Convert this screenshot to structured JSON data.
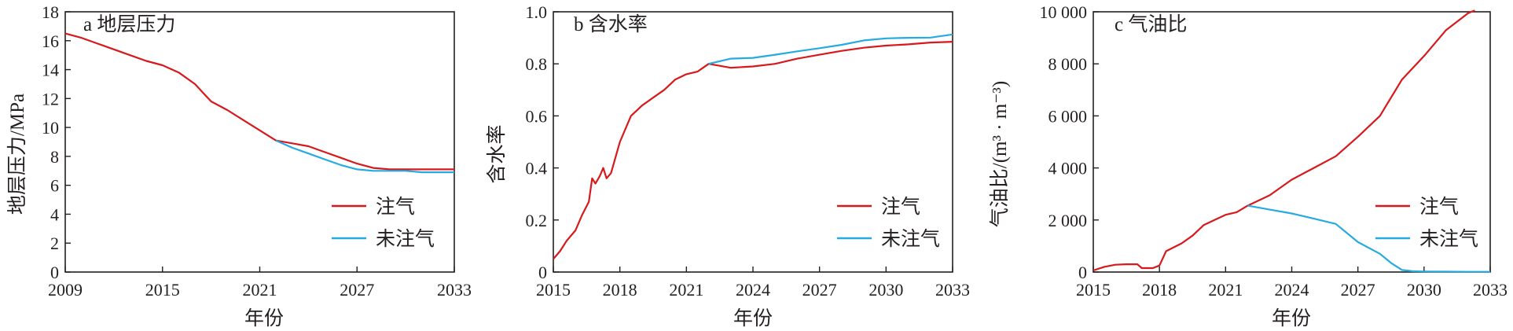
{
  "chart_data": [
    {
      "type": "line",
      "title": "a 地层压力",
      "xlabel": "年份",
      "ylabel": "地层压力/MPa",
      "xlim": [
        2009,
        2033
      ],
      "ylim": [
        0,
        18
      ],
      "x_ticks": [
        2009,
        2015,
        2021,
        2027,
        2033
      ],
      "y_ticks": [
        0,
        2,
        4,
        6,
        8,
        10,
        12,
        14,
        16,
        18
      ],
      "y_tick_labels": [
        "0",
        "2",
        "4",
        "6",
        "8",
        "10",
        "12",
        "14",
        "16",
        "18"
      ],
      "grid": false,
      "legend_position": "bottom-right",
      "series": [
        {
          "name": "注气",
          "color": "#d7191c",
          "points": [
            [
              2009,
              16.5
            ],
            [
              2010,
              16.2
            ],
            [
              2011,
              15.8
            ],
            [
              2012,
              15.4
            ],
            [
              2013,
              15.0
            ],
            [
              2014,
              14.6
            ],
            [
              2015,
              14.3
            ],
            [
              2016,
              13.8
            ],
            [
              2017,
              13.0
            ],
            [
              2018,
              11.8
            ],
            [
              2019,
              11.2
            ],
            [
              2020,
              10.5
            ],
            [
              2021,
              9.8
            ],
            [
              2022,
              9.1
            ],
            [
              2023,
              8.9
            ],
            [
              2024,
              8.7
            ],
            [
              2025,
              8.3
            ],
            [
              2026,
              7.9
            ],
            [
              2027,
              7.5
            ],
            [
              2028,
              7.2
            ],
            [
              2029,
              7.1
            ],
            [
              2030,
              7.1
            ],
            [
              2031,
              7.1
            ],
            [
              2032,
              7.1
            ],
            [
              2033,
              7.1
            ]
          ]
        },
        {
          "name": "未注气",
          "color": "#27aae1",
          "points": [
            [
              2022,
              9.1
            ],
            [
              2023,
              8.6
            ],
            [
              2024,
              8.2
            ],
            [
              2025,
              7.8
            ],
            [
              2026,
              7.4
            ],
            [
              2027,
              7.1
            ],
            [
              2028,
              7.0
            ],
            [
              2029,
              7.0
            ],
            [
              2030,
              7.0
            ],
            [
              2031,
              6.9
            ],
            [
              2032,
              6.9
            ],
            [
              2033,
              6.9
            ]
          ]
        }
      ]
    },
    {
      "type": "line",
      "title": "b 含水率",
      "xlabel": "年份",
      "ylabel": "含水率",
      "xlim": [
        2015,
        2033
      ],
      "ylim": [
        0,
        1.0
      ],
      "x_ticks": [
        2015,
        2018,
        2021,
        2024,
        2027,
        2030,
        2033
      ],
      "y_ticks": [
        0,
        0.2,
        0.4,
        0.6,
        0.8,
        1.0
      ],
      "y_tick_labels": [
        "0",
        "0.2",
        "0.4",
        "0.6",
        "0.8",
        "1.0"
      ],
      "grid": false,
      "legend_position": "bottom-right",
      "series": [
        {
          "name": "注气",
          "color": "#d7191c",
          "points": [
            [
              2015,
              0.05
            ],
            [
              2015.3,
              0.08
            ],
            [
              2015.6,
              0.12
            ],
            [
              2016,
              0.16
            ],
            [
              2016.3,
              0.22
            ],
            [
              2016.6,
              0.27
            ],
            [
              2016.75,
              0.36
            ],
            [
              2016.9,
              0.34
            ],
            [
              2017.1,
              0.37
            ],
            [
              2017.25,
              0.4
            ],
            [
              2017.4,
              0.36
            ],
            [
              2017.6,
              0.38
            ],
            [
              2018,
              0.5
            ],
            [
              2018.5,
              0.6
            ],
            [
              2019,
              0.64
            ],
            [
              2019.5,
              0.67
            ],
            [
              2020,
              0.7
            ],
            [
              2020.5,
              0.74
            ],
            [
              2021,
              0.76
            ],
            [
              2021.5,
              0.77
            ],
            [
              2022,
              0.8
            ],
            [
              2023,
              0.785
            ],
            [
              2024,
              0.79
            ],
            [
              2025,
              0.8
            ],
            [
              2026,
              0.82
            ],
            [
              2027,
              0.835
            ],
            [
              2028,
              0.85
            ],
            [
              2029,
              0.862
            ],
            [
              2030,
              0.87
            ],
            [
              2031,
              0.875
            ],
            [
              2032,
              0.882
            ],
            [
              2033,
              0.885
            ]
          ]
        },
        {
          "name": "未注气",
          "color": "#27aae1",
          "points": [
            [
              2022,
              0.8
            ],
            [
              2023,
              0.82
            ],
            [
              2024,
              0.823
            ],
            [
              2025,
              0.835
            ],
            [
              2026,
              0.848
            ],
            [
              2027,
              0.86
            ],
            [
              2028,
              0.873
            ],
            [
              2029,
              0.89
            ],
            [
              2030,
              0.898
            ],
            [
              2031,
              0.9
            ],
            [
              2032,
              0.901
            ],
            [
              2033,
              0.913
            ]
          ]
        }
      ]
    },
    {
      "type": "line",
      "title": "c 气油比",
      "xlabel": "年份",
      "ylabel": "气油比/(m³ · m⁻³)",
      "xlim": [
        2015,
        2033
      ],
      "ylim": [
        0,
        10000
      ],
      "x_ticks": [
        2015,
        2018,
        2021,
        2024,
        2027,
        2030,
        2033
      ],
      "y_ticks": [
        0,
        2000,
        4000,
        6000,
        8000,
        10000
      ],
      "y_tick_labels": [
        "0",
        "2 000",
        "4 000",
        "6 000",
        "8 000",
        "10 000"
      ],
      "grid": false,
      "legend_position": "bottom-right",
      "series": [
        {
          "name": "注气",
          "color": "#d7191c",
          "points": [
            [
              2015,
              60
            ],
            [
              2015.5,
              200
            ],
            [
              2016,
              280
            ],
            [
              2016.5,
              300
            ],
            [
              2017,
              300
            ],
            [
              2017.2,
              150
            ],
            [
              2017.7,
              150
            ],
            [
              2018,
              250
            ],
            [
              2018.3,
              800
            ],
            [
              2019,
              1100
            ],
            [
              2019.5,
              1400
            ],
            [
              2020,
              1800
            ],
            [
              2020.5,
              2000
            ],
            [
              2021,
              2200
            ],
            [
              2021.5,
              2300
            ],
            [
              2022,
              2550
            ],
            [
              2023,
              2950
            ],
            [
              2024,
              3550
            ],
            [
              2025,
              4000
            ],
            [
              2026,
              4450
            ],
            [
              2027,
              5200
            ],
            [
              2028,
              6000
            ],
            [
              2029,
              7400
            ],
            [
              2030,
              8300
            ],
            [
              2031,
              9300
            ],
            [
              2032,
              9950
            ],
            [
              2032.3,
              10050
            ]
          ]
        },
        {
          "name": "未注气",
          "color": "#27aae1",
          "points": [
            [
              2022,
              2550
            ],
            [
              2023,
              2400
            ],
            [
              2024,
              2250
            ],
            [
              2025,
              2050
            ],
            [
              2026,
              1850
            ],
            [
              2027,
              1150
            ],
            [
              2028,
              700
            ],
            [
              2028.5,
              350
            ],
            [
              2029,
              80
            ],
            [
              2029.5,
              30
            ],
            [
              2030,
              20
            ],
            [
              2031,
              15
            ],
            [
              2032,
              10
            ],
            [
              2033,
              10
            ]
          ]
        }
      ]
    }
  ]
}
